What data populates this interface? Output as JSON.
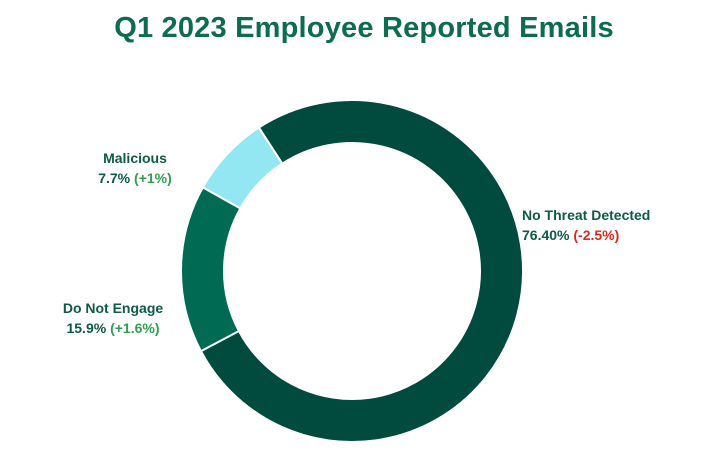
{
  "chart_data": {
    "type": "pie",
    "title": "Q1 2023 Employee Reported Emails",
    "slices": [
      {
        "label": "No Threat Detected",
        "value_text": "76.40%",
        "change_text": "(-2.5%)",
        "value": 76.4,
        "color": "#004a3e",
        "change_color": "#e3261b"
      },
      {
        "label": "Do Not Engage",
        "value_text": "15.9%",
        "change_text": "(+1.6%)",
        "value": 15.9,
        "color": "#006b52",
        "change_color": "#2f9e4f"
      },
      {
        "label": "Malicious",
        "value_text": "7.7%",
        "change_text": "(+1%)",
        "value": 7.7,
        "color": "#92e7f3",
        "change_color": "#2f9e4f"
      }
    ],
    "legend": "none"
  }
}
